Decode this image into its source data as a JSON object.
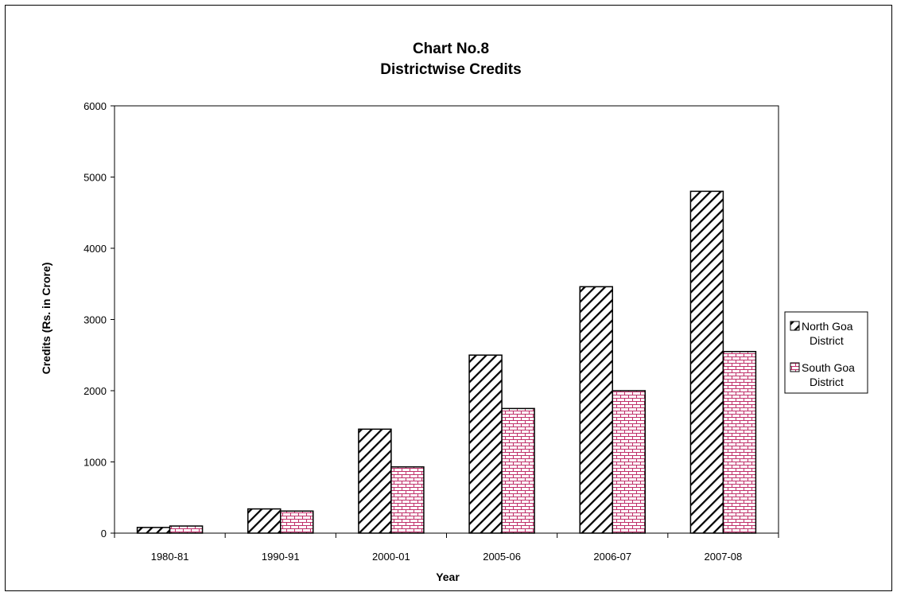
{
  "chart_data": {
    "type": "bar",
    "title": "Chart No.8",
    "subtitle": "Districtwise Credits",
    "xlabel": "Year",
    "ylabel": "Credits (Rs. in Crore)",
    "ylim": [
      0,
      6000
    ],
    "yticks": [
      "0",
      "1000",
      "2000",
      "3000",
      "4000",
      "5000",
      "6000"
    ],
    "categories": [
      "1980-81",
      "1990-91",
      "2000-01",
      "2005-06",
      "2006-07",
      "2007-08"
    ],
    "series": [
      {
        "name": "North Goa District",
        "name_lines": [
          "North Goa",
          "District"
        ],
        "values": [
          80,
          340,
          1460,
          2500,
          3460,
          4800
        ],
        "pattern": "diagonal-hatch",
        "color": "#000000"
      },
      {
        "name": "South Goa District",
        "name_lines": [
          "South Goa",
          "District"
        ],
        "values": [
          100,
          310,
          930,
          1750,
          2000,
          2550
        ],
        "pattern": "brick",
        "color": "#c0306a"
      }
    ],
    "grid": false,
    "legend": "right"
  }
}
